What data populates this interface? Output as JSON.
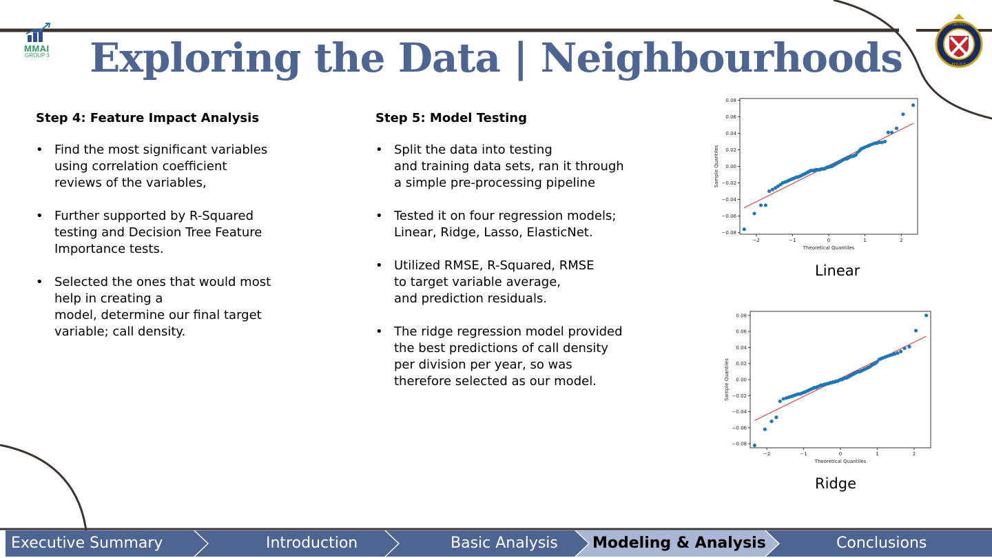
{
  "header": {
    "title": "Exploring the Data | Neighbourhoods",
    "logo_text": "MMAI",
    "logo_subtext": "GROUP 3",
    "crest_top_text": "TORONTO",
    "crest_bottom_text": "POLICE"
  },
  "step4": {
    "heading": "Step 4: Feature Impact Analysis",
    "bullets": [
      "Find the most significant variables\nusing correlation coefficient\nreviews of the variables,",
      "Further supported by R-Squared\ntesting and Decision Tree Feature\nImportance tests.",
      "Selected the ones that would most\nhelp in creating a\nmodel, determine our final target\nvariable; call density."
    ]
  },
  "step5": {
    "heading": "Step 5: Model Testing",
    "bullets": [
      "Split the data into testing\nand training data sets, ran it through\na simple pre-processing pipeline",
      "Tested it on four regression models;\nLinear, Ridge, Lasso, ElasticNet.",
      "Utilized RMSE, R-Squared, RMSE\nto target variable average,\nand prediction residuals.",
      "The ridge regression model provided\nthe best predictions of call density\nper division per year, so was\ntherefore selected as our model."
    ]
  },
  "bullet_char": "•",
  "captions": {
    "linear": "Linear",
    "ridge": "Ridge"
  },
  "nav": {
    "tabs": [
      {
        "label": "Executive Summary",
        "active": false
      },
      {
        "label": "Introduction",
        "active": false
      },
      {
        "label": "Basic Analysis",
        "active": false
      },
      {
        "label": "Modeling & Analysis",
        "active": true
      },
      {
        "label": "Conclusions",
        "active": false
      }
    ]
  },
  "colors": {
    "title": "#4e6491",
    "nav_fill": "#4e6491",
    "nav_active_fill": "#a9b6d4",
    "point": "#1f77b4",
    "reference_line": "#d62728",
    "swoosh": "#3a3330"
  },
  "chart_data": [
    {
      "type": "scatter",
      "name": "Linear",
      "xlabel": "Theoretical Quantiles",
      "ylabel": "Sample Quantiles",
      "xlim": [
        -2.45,
        2.45
      ],
      "ylim": [
        -0.082,
        0.082
      ],
      "xticks": [
        "−2",
        "−1",
        "0",
        "1",
        "2"
      ],
      "yticks": [
        "−0.08",
        "−0.06",
        "−0.04",
        "−0.02",
        "0.00",
        "0.02",
        "0.04",
        "0.06",
        "0.08"
      ],
      "reference_line": [
        [
          -2.33,
          -0.05
        ],
        [
          2.33,
          0.052
        ]
      ],
      "points": [
        [
          -2.33,
          -0.076
        ],
        [
          -2.05,
          -0.057
        ],
        [
          -1.87,
          -0.047
        ],
        [
          -1.74,
          -0.047
        ],
        [
          -1.64,
          -0.03
        ],
        [
          -1.55,
          -0.028
        ],
        [
          -1.47,
          -0.026
        ],
        [
          -1.4,
          -0.024
        ],
        [
          -1.33,
          -0.022
        ],
        [
          -1.27,
          -0.02
        ],
        [
          -1.21,
          -0.019
        ],
        [
          -1.15,
          -0.018
        ],
        [
          -1.1,
          -0.017
        ],
        [
          -1.05,
          -0.016
        ],
        [
          -0.99,
          -0.015
        ],
        [
          -0.94,
          -0.014
        ],
        [
          -0.89,
          -0.013
        ],
        [
          -0.85,
          -0.013
        ],
        [
          -0.8,
          -0.012
        ],
        [
          -0.75,
          -0.011
        ],
        [
          -0.71,
          -0.01
        ],
        [
          -0.66,
          -0.009
        ],
        [
          -0.62,
          -0.008
        ],
        [
          -0.57,
          -0.007
        ],
        [
          -0.53,
          -0.006
        ],
        [
          -0.49,
          -0.005
        ],
        [
          -0.44,
          -0.005
        ],
        [
          -0.4,
          -0.005
        ],
        [
          -0.36,
          -0.004
        ],
        [
          -0.32,
          -0.004
        ],
        [
          -0.28,
          -0.004
        ],
        [
          -0.24,
          -0.004
        ],
        [
          -0.2,
          -0.003
        ],
        [
          -0.16,
          -0.003
        ],
        [
          -0.12,
          -0.003
        ],
        [
          -0.08,
          -0.002
        ],
        [
          -0.04,
          -0.001
        ],
        [
          0.0,
          -0.001
        ],
        [
          0.04,
          0.0
        ],
        [
          0.08,
          0.0
        ],
        [
          0.12,
          0.001
        ],
        [
          0.16,
          0.002
        ],
        [
          0.2,
          0.003
        ],
        [
          0.24,
          0.004
        ],
        [
          0.28,
          0.005
        ],
        [
          0.32,
          0.006
        ],
        [
          0.36,
          0.007
        ],
        [
          0.4,
          0.008
        ],
        [
          0.44,
          0.009
        ],
        [
          0.49,
          0.009
        ],
        [
          0.53,
          0.01
        ],
        [
          0.57,
          0.011
        ],
        [
          0.62,
          0.012
        ],
        [
          0.66,
          0.012
        ],
        [
          0.71,
          0.013
        ],
        [
          0.75,
          0.014
        ],
        [
          0.8,
          0.017
        ],
        [
          0.85,
          0.019
        ],
        [
          0.89,
          0.021
        ],
        [
          0.94,
          0.022
        ],
        [
          0.99,
          0.023
        ],
        [
          1.05,
          0.024
        ],
        [
          1.1,
          0.025
        ],
        [
          1.15,
          0.026
        ],
        [
          1.21,
          0.027
        ],
        [
          1.27,
          0.028
        ],
        [
          1.33,
          0.028
        ],
        [
          1.4,
          0.029
        ],
        [
          1.47,
          0.029
        ],
        [
          1.55,
          0.03
        ],
        [
          1.64,
          0.041
        ],
        [
          1.74,
          0.041
        ],
        [
          1.87,
          0.046
        ],
        [
          2.05,
          0.063
        ],
        [
          2.33,
          0.074
        ]
      ]
    },
    {
      "type": "scatter",
      "name": "Ridge",
      "xlabel": "Theoretical Quantiles",
      "ylabel": "Sample Quantiles",
      "xlim": [
        -2.45,
        2.45
      ],
      "ylim": [
        -0.085,
        0.085
      ],
      "xticks": [
        "−2",
        "−1",
        "0",
        "1",
        "2"
      ],
      "yticks": [
        "−0.08",
        "−0.06",
        "−0.04",
        "−0.02",
        "0.00",
        "0.02",
        "0.04",
        "0.06",
        "0.08"
      ],
      "reference_line": [
        [
          -2.33,
          -0.051
        ],
        [
          2.33,
          0.054
        ]
      ],
      "points": [
        [
          -2.33,
          -0.082
        ],
        [
          -2.05,
          -0.062
        ],
        [
          -1.87,
          -0.052
        ],
        [
          -1.74,
          -0.047
        ],
        [
          -1.64,
          -0.027
        ],
        [
          -1.55,
          -0.024
        ],
        [
          -1.47,
          -0.023
        ],
        [
          -1.4,
          -0.022
        ],
        [
          -1.33,
          -0.021
        ],
        [
          -1.27,
          -0.02
        ],
        [
          -1.21,
          -0.019
        ],
        [
          -1.15,
          -0.018
        ],
        [
          -1.1,
          -0.018
        ],
        [
          -1.05,
          -0.017
        ],
        [
          -0.99,
          -0.016
        ],
        [
          -0.94,
          -0.015
        ],
        [
          -0.89,
          -0.014
        ],
        [
          -0.85,
          -0.013
        ],
        [
          -0.8,
          -0.012
        ],
        [
          -0.75,
          -0.011
        ],
        [
          -0.71,
          -0.01
        ],
        [
          -0.66,
          -0.01
        ],
        [
          -0.62,
          -0.009
        ],
        [
          -0.57,
          -0.008
        ],
        [
          -0.53,
          -0.007
        ],
        [
          -0.49,
          -0.007
        ],
        [
          -0.44,
          -0.006
        ],
        [
          -0.4,
          -0.006
        ],
        [
          -0.36,
          -0.005
        ],
        [
          -0.32,
          -0.005
        ],
        [
          -0.28,
          -0.004
        ],
        [
          -0.24,
          -0.004
        ],
        [
          -0.2,
          -0.003
        ],
        [
          -0.16,
          -0.003
        ],
        [
          -0.12,
          -0.002
        ],
        [
          -0.08,
          -0.002
        ],
        [
          -0.04,
          -0.001
        ],
        [
          0.0,
          0.0
        ],
        [
          0.04,
          0.0
        ],
        [
          0.08,
          0.001
        ],
        [
          0.12,
          0.002
        ],
        [
          0.16,
          0.002
        ],
        [
          0.2,
          0.003
        ],
        [
          0.24,
          0.004
        ],
        [
          0.28,
          0.005
        ],
        [
          0.32,
          0.006
        ],
        [
          0.36,
          0.007
        ],
        [
          0.4,
          0.008
        ],
        [
          0.44,
          0.009
        ],
        [
          0.49,
          0.01
        ],
        [
          0.53,
          0.01
        ],
        [
          0.57,
          0.011
        ],
        [
          0.62,
          0.012
        ],
        [
          0.66,
          0.013
        ],
        [
          0.71,
          0.014
        ],
        [
          0.75,
          0.015
        ],
        [
          0.8,
          0.016
        ],
        [
          0.85,
          0.018
        ],
        [
          0.89,
          0.019
        ],
        [
          0.94,
          0.02
        ],
        [
          0.99,
          0.022
        ],
        [
          1.05,
          0.025
        ],
        [
          1.1,
          0.026
        ],
        [
          1.15,
          0.027
        ],
        [
          1.21,
          0.028
        ],
        [
          1.27,
          0.029
        ],
        [
          1.33,
          0.03
        ],
        [
          1.4,
          0.031
        ],
        [
          1.47,
          0.032
        ],
        [
          1.55,
          0.033
        ],
        [
          1.64,
          0.035
        ],
        [
          1.74,
          0.039
        ],
        [
          1.87,
          0.041
        ],
        [
          2.05,
          0.061
        ],
        [
          2.33,
          0.08
        ]
      ]
    }
  ]
}
